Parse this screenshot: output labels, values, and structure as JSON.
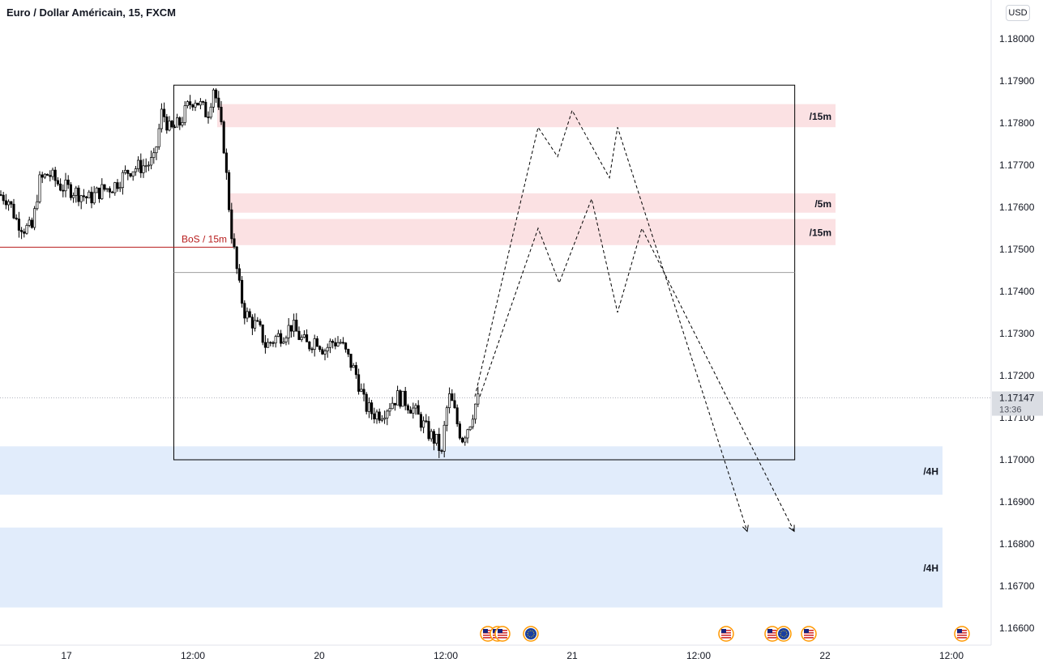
{
  "header": {
    "title": "Euro / Dollar Américain, 15, FXCM"
  },
  "axis": {
    "currency_button": "USD"
  },
  "chart_data": {
    "type": "candlestick",
    "symbol": "Euro / Dollar Américain, 15, FXCM",
    "price_axis": {
      "ticks": [
        "1.18000",
        "1.17900",
        "1.17800",
        "1.17700",
        "1.17600",
        "1.17500",
        "1.17400",
        "1.17300",
        "1.17200",
        "1.17100",
        "1.17000",
        "1.16900",
        "1.16800",
        "1.16700",
        "1.16600"
      ],
      "ylim": [
        1.16555,
        1.18085
      ]
    },
    "time_axis": {
      "ticks": [
        "17",
        "12:00",
        "20",
        "12:00",
        "21",
        "12:00",
        "22",
        "12:00"
      ]
    },
    "current_price": {
      "label": "1.17147",
      "value": 1.17147,
      "countdown": "13:36"
    },
    "grid": false,
    "price_path_approx": [
      [
        0,
        1.1763
      ],
      [
        10,
        1.1762
      ],
      [
        20,
        1.1757
      ],
      [
        30,
        1.1755
      ],
      [
        40,
        1.1755
      ],
      [
        48,
        1.1766
      ],
      [
        60,
        1.1768
      ],
      [
        75,
        1.1765
      ],
      [
        90,
        1.1764
      ],
      [
        110,
        1.1762
      ],
      [
        125,
        1.1764
      ],
      [
        140,
        1.1765
      ],
      [
        160,
        1.1769
      ],
      [
        180,
        1.177
      ],
      [
        190,
        1.1771
      ],
      [
        200,
        1.1783
      ],
      [
        210,
        1.1778
      ],
      [
        222,
        1.178
      ],
      [
        232,
        1.1784
      ],
      [
        240,
        1.1786
      ],
      [
        248,
        1.1784
      ],
      [
        256,
        1.1782
      ],
      [
        264,
        1.1789
      ],
      [
        270,
        1.1782
      ],
      [
        276,
        1.1775
      ],
      [
        280,
        1.1766
      ],
      [
        285,
        1.1755
      ],
      [
        290,
        1.1748
      ],
      [
        296,
        1.174
      ],
      [
        302,
        1.1735
      ],
      [
        310,
        1.1733
      ],
      [
        320,
        1.1731
      ],
      [
        328,
        1.1727
      ],
      [
        340,
        1.1729
      ],
      [
        350,
        1.173
      ],
      [
        360,
        1.1732
      ],
      [
        370,
        1.1729
      ],
      [
        380,
        1.1727
      ],
      [
        390,
        1.1729
      ],
      [
        400,
        1.1726
      ],
      [
        410,
        1.1728
      ],
      [
        420,
        1.1728
      ],
      [
        430,
        1.1724
      ],
      [
        440,
        1.172
      ],
      [
        450,
        1.1713
      ],
      [
        460,
        1.1711
      ],
      [
        470,
        1.1711
      ],
      [
        480,
        1.1713
      ],
      [
        490,
        1.1715
      ],
      [
        500,
        1.1714
      ],
      [
        510,
        1.1712
      ],
      [
        520,
        1.1709
      ],
      [
        530,
        1.1706
      ],
      [
        540,
        1.1704
      ],
      [
        545,
        1.1701
      ],
      [
        550,
        1.1711
      ],
      [
        555,
        1.1715
      ],
      [
        560,
        1.1712
      ],
      [
        565,
        1.1708
      ],
      [
        570,
        1.1705
      ],
      [
        575,
        1.1707
      ],
      [
        580,
        1.1709
      ],
      [
        586,
        1.1713
      ],
      [
        592,
        1.1715
      ]
    ],
    "annotations": {
      "bos_label": "BoS / 15m",
      "bos_price": 1.17505,
      "rect_box": {
        "price_top": 1.1789,
        "price_bottom": 1.17,
        "time_start_frac": 0.1755,
        "time_end_frac": 0.8025
      },
      "supply_zones": [
        {
          "label": "/15m",
          "price_high": 1.17845,
          "price_low": 1.1779
        },
        {
          "label": "/5m",
          "price_high": 1.17633,
          "price_low": 1.17587
        },
        {
          "label": "/15m",
          "price_high": 1.17572,
          "price_low": 1.1751
        }
      ],
      "demand_zones": [
        {
          "label": "/4H",
          "price_high": 1.17032,
          "price_low": 1.16917
        },
        {
          "label": "/4H",
          "price_high": 1.16839,
          "price_low": 1.16649
        }
      ],
      "horizontal_line_price": 1.17445,
      "projection_paths": [
        [
          [
            586,
            1.1715
          ],
          [
            664,
            1.1779
          ],
          [
            688,
            1.1772
          ],
          [
            706,
            1.1783
          ],
          [
            752,
            1.1767
          ],
          [
            762,
            1.1779
          ],
          [
            922,
            1.1683
          ]
        ],
        [
          [
            592,
            1.1715
          ],
          [
            664,
            1.1755
          ],
          [
            690,
            1.1742
          ],
          [
            730,
            1.1762
          ],
          [
            762,
            1.1735
          ],
          [
            792,
            1.1755
          ],
          [
            980,
            1.1683
          ]
        ]
      ]
    },
    "event_markers": [
      {
        "type": "us-flag",
        "group": 1
      },
      {
        "type": "us-flag",
        "group": 1
      },
      {
        "type": "us-flag",
        "group": 1
      },
      {
        "type": "eu-flag",
        "group": 2
      },
      {
        "type": "us-flag",
        "group": 3
      },
      {
        "type": "us-flag",
        "group": 4
      },
      {
        "type": "eu-flag",
        "group": 4
      },
      {
        "type": "us-flag",
        "group": 5
      },
      {
        "type": "us-flag",
        "group": 6
      }
    ],
    "colors": {
      "candle_up": "#ffffff",
      "candle_down": "#000000",
      "wick": "#000000",
      "supply_zone": "#fbe1e3",
      "demand_zone": "#e1ecfb",
      "bos_line": "#b71c1c",
      "projection": "#000000"
    }
  }
}
